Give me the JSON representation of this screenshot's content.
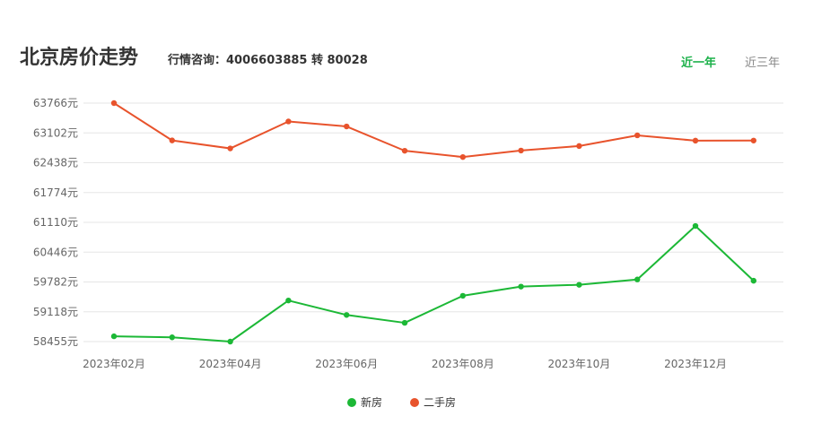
{
  "header": {
    "title": "北京房价走势",
    "hotline": "行情咨询：4006603885 转 80028",
    "tabs": [
      {
        "label": "近一年",
        "active": true
      },
      {
        "label": "近三年",
        "active": false
      }
    ]
  },
  "colors": {
    "new_home": "#1cb836",
    "second_hand": "#e8532c",
    "tab_active": "#1cb14a"
  },
  "chart_data": {
    "type": "line",
    "x": [
      "2023年02月",
      "2023年03月",
      "2023年04月",
      "2023年05月",
      "2023年06月",
      "2023年07月",
      "2023年08月",
      "2023年09月",
      "2023年10月",
      "2023年11月",
      "2023年12月",
      "2024年01月"
    ],
    "x_tick_labels": [
      "2023年02月",
      "2023年04月",
      "2023年06月",
      "2023年08月",
      "2023年10月",
      "2023年12月"
    ],
    "y_ticks": [
      58455,
      59118,
      59782,
      60446,
      61110,
      61774,
      62438,
      63102,
      63766
    ],
    "y_tick_labels": [
      "58455元",
      "59118元",
      "59782元",
      "60446元",
      "61110元",
      "61774元",
      "62438元",
      "63102元",
      "63766元"
    ],
    "ylim": [
      58455,
      63766
    ],
    "series": [
      {
        "name": "新房",
        "values": [
          58573,
          58550,
          58455,
          59370,
          59048,
          58873,
          59475,
          59680,
          59720,
          59838,
          61030,
          59810
        ]
      },
      {
        "name": "二手房",
        "values": [
          63766,
          62935,
          62757,
          63357,
          63246,
          62705,
          62565,
          62710,
          62810,
          63048,
          62930,
          62932
        ]
      }
    ],
    "legend_position": "bottom-center",
    "grid": true
  }
}
